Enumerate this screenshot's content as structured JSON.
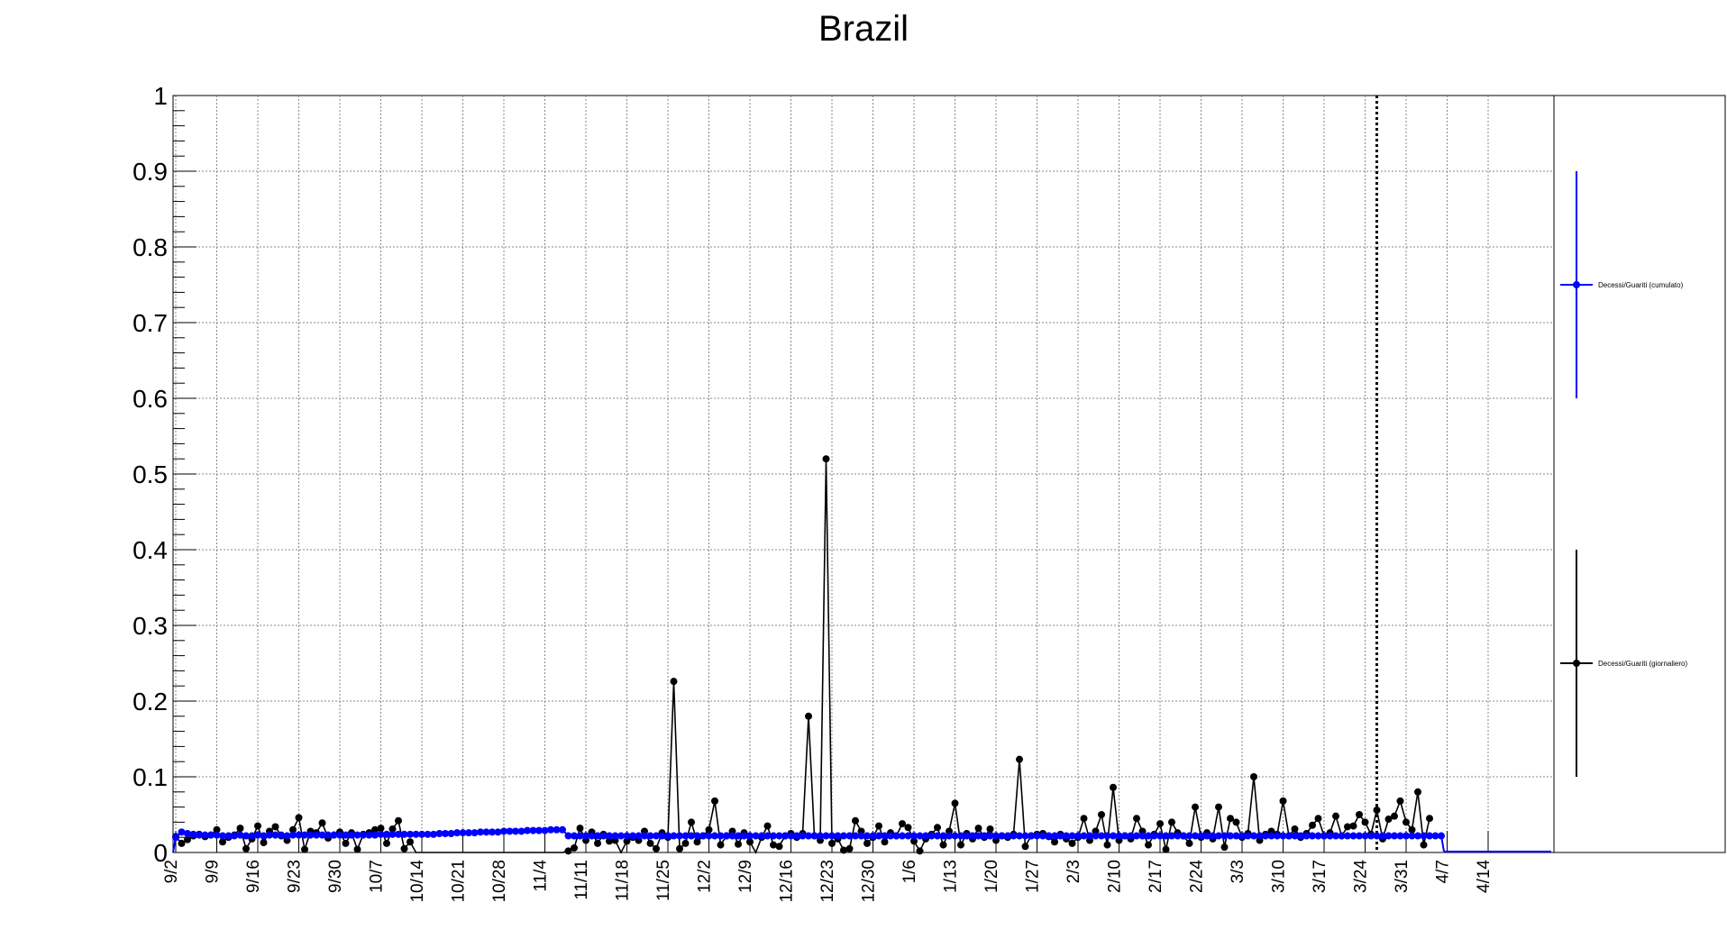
{
  "chart_data": {
    "type": "line",
    "title": "Brazil",
    "xlabel": "",
    "ylabel": "",
    "ylim": [
      0,
      1
    ],
    "y_ticks": [
      "0",
      "0.1",
      "0.2",
      "0.3",
      "0.4",
      "0.5",
      "0.6",
      "0.7",
      "0.8",
      "0.9",
      "1"
    ],
    "x_tick_labels": [
      "9/2",
      "9/9",
      "9/16",
      "9/23",
      "9/30",
      "10/7",
      "10/14",
      "10/21",
      "10/28",
      "11/4",
      "11/11",
      "11/18",
      "11/25",
      "12/2",
      "12/9",
      "12/16",
      "12/23",
      "12/30",
      "1/6",
      "1/13",
      "1/20",
      "1/27",
      "2/3",
      "2/10",
      "2/17",
      "2/24",
      "3/3",
      "3/10",
      "3/17",
      "3/24",
      "3/31",
      "4/7",
      "4/14"
    ],
    "x_range_days": [
      0,
      230
    ],
    "marker_day": 205,
    "grid": true,
    "legend_position": "right",
    "series": [
      {
        "name": "Decessi/Guariti (giornaliero)",
        "color": "#000000",
        "values": [
          0.021,
          0.012,
          0.017,
          0.022,
          0.024,
          0.021,
          0.023,
          0.03,
          0.014,
          0.02,
          0.023,
          0.032,
          0.005,
          0.018,
          0.035,
          0.013,
          0.028,
          0.034,
          0.022,
          0.016,
          0.03,
          0.046,
          0.004,
          0.028,
          0.026,
          0.039,
          0.019,
          0.023,
          0.027,
          0.012,
          0.026,
          0.004,
          0.024,
          0.026,
          0.03,
          0.032,
          0.012,
          0.031,
          0.042,
          0.005,
          0.014,
          0,
          0,
          0,
          0,
          0,
          0,
          0,
          0,
          0,
          0,
          0,
          0,
          0,
          0,
          0,
          0,
          0,
          0,
          0,
          0,
          0,
          0,
          0,
          0,
          0,
          0,
          0.002,
          0.006,
          0.032,
          0.016,
          0.027,
          0.012,
          0.024,
          0.015,
          0.016,
          0,
          0.015,
          0.02,
          0.016,
          0.028,
          0.012,
          0.005,
          0.026,
          0.02,
          0.226,
          0.005,
          0.012,
          0.04,
          0.014,
          0.022,
          0.03,
          0.068,
          0.01,
          0.022,
          0.028,
          0.011,
          0.026,
          0.014,
          0,
          0.02,
          0.035,
          0.01,
          0.008,
          0.022,
          0.025,
          0.02,
          0.025,
          0.18,
          0.022,
          0.016,
          0.52,
          0.012,
          0.018,
          0.003,
          0.005,
          0.042,
          0.028,
          0.012,
          0.02,
          0.035,
          0.014,
          0.026,
          0.022,
          0.038,
          0.033,
          0.015,
          0.002,
          0.018,
          0.024,
          0.033,
          0.01,
          0.028,
          0.065,
          0.01,
          0.025,
          0.018,
          0.032,
          0.02,
          0.031,
          0.016,
          0.022,
          0.02,
          0.024,
          0.123,
          0.008,
          0.022,
          0.024,
          0.025,
          0.021,
          0.014,
          0.024,
          0.018,
          0.012,
          0.02,
          0.045,
          0.016,
          0.028,
          0.05,
          0.01,
          0.086,
          0.016,
          0.022,
          0.018,
          0.045,
          0.028,
          0.01,
          0.024,
          0.038,
          0.004,
          0.04,
          0.026,
          0.022,
          0.012,
          0.06,
          0.02,
          0.026,
          0.018,
          0.06,
          0.007,
          0.045,
          0.04,
          0.02,
          0.025,
          0.1,
          0.016,
          0.024,
          0.028,
          0.024,
          0.068,
          0.022,
          0.031,
          0.02,
          0.025,
          0.036,
          0.045,
          0.022,
          0.026,
          0.048,
          0.022,
          0.034,
          0.035,
          0.05,
          0.04,
          0.024,
          0.056,
          0.018,
          0.044,
          0.048,
          0.068,
          0.04,
          0.03,
          0.08,
          0.01,
          0.045
        ]
      },
      {
        "name": "Decessi/Guariti (cumulato)",
        "color": "#0000ff",
        "values": [
          0.02,
          0.027,
          0.025,
          0.024,
          0.023,
          0.023,
          0.023,
          0.023,
          0.022,
          0.022,
          0.022,
          0.023,
          0.022,
          0.022,
          0.023,
          0.022,
          0.023,
          0.023,
          0.023,
          0.022,
          0.023,
          0.023,
          0.023,
          0.023,
          0.023,
          0.023,
          0.023,
          0.023,
          0.023,
          0.023,
          0.023,
          0.023,
          0.023,
          0.023,
          0.023,
          0.024,
          0.024,
          0.024,
          0.024,
          0.024,
          0.024,
          0.024,
          0.024,
          0.024,
          0.024,
          0.025,
          0.025,
          0.025,
          0.026,
          0.026,
          0.026,
          0.026,
          0.027,
          0.027,
          0.027,
          0.027,
          0.028,
          0.028,
          0.028,
          0.028,
          0.029,
          0.029,
          0.029,
          0.029,
          0.03,
          0.03,
          0.03,
          0.022,
          0.022,
          0.022,
          0.022,
          0.022,
          0.022,
          0.022,
          0.022,
          0.022,
          0.022,
          0.022,
          0.022,
          0.022,
          0.022,
          0.022,
          0.022,
          0.022,
          0.022,
          0.022,
          0.022,
          0.022,
          0.022,
          0.022,
          0.022,
          0.022,
          0.022,
          0.022,
          0.022,
          0.022,
          0.022,
          0.022,
          0.022,
          0.022,
          0.022,
          0.022,
          0.022,
          0.022,
          0.022,
          0.022,
          0.022,
          0.022,
          0.022,
          0.022,
          0.022,
          0.022,
          0.022,
          0.022,
          0.022,
          0.022,
          0.022,
          0.022,
          0.022,
          0.022,
          0.022,
          0.022,
          0.022,
          0.022,
          0.022,
          0.022,
          0.022,
          0.022,
          0.022,
          0.022,
          0.022,
          0.022,
          0.022,
          0.022,
          0.022,
          0.022,
          0.022,
          0.022,
          0.022,
          0.022,
          0.022,
          0.022,
          0.022,
          0.022,
          0.022,
          0.022,
          0.022,
          0.022,
          0.022,
          0.022,
          0.022,
          0.022,
          0.022,
          0.022,
          0.022,
          0.022,
          0.022,
          0.022,
          0.022,
          0.022,
          0.022,
          0.022,
          0.022,
          0.022,
          0.022,
          0.022,
          0.022,
          0.022,
          0.022,
          0.022,
          0.022,
          0.022,
          0.022,
          0.022,
          0.022,
          0.022,
          0.022,
          0.022,
          0.022,
          0.022,
          0.022,
          0.022,
          0.022,
          0.022,
          0.022,
          0.022,
          0.022,
          0.022,
          0.022,
          0.022,
          0.022,
          0.022,
          0.022,
          0.022,
          0.022,
          0.022,
          0.022,
          0.022,
          0.022,
          0.022,
          0.022,
          0.022,
          0.022,
          0.022,
          0.022,
          0.022,
          0.022,
          0.022,
          0.022,
          0.022,
          0.022,
          0.022,
          0.022,
          0.022,
          0.022,
          0.022,
          0.022
        ]
      }
    ]
  }
}
